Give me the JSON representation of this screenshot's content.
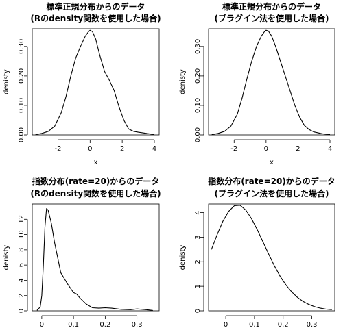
{
  "chart_data": [
    {
      "type": "line",
      "title": "標準正規分布からのデータ",
      "subtitle": "(Rのdensity関数を使用した場合)",
      "xlabel": "x",
      "ylabel": "denisty",
      "xlim": [
        -3.6,
        4.3
      ],
      "ylim": [
        0,
        0.36
      ],
      "xticks": [
        -2,
        0,
        2,
        4
      ],
      "yticks": [
        0.0,
        0.1,
        0.2,
        0.3
      ],
      "ytick_labels": [
        "0.00",
        "0.10",
        "0.20",
        "0.30"
      ],
      "grid": false,
      "x": [
        -3.4,
        -3.0,
        -2.6,
        -2.2,
        -1.8,
        -1.5,
        -1.2,
        -0.9,
        -0.6,
        -0.3,
        -0.1,
        0.0,
        0.15,
        0.35,
        0.6,
        0.9,
        1.2,
        1.5,
        1.8,
        2.1,
        2.4,
        2.7,
        3.0,
        3.5,
        4.0
      ],
      "y": [
        0.001,
        0.005,
        0.012,
        0.03,
        0.075,
        0.13,
        0.2,
        0.26,
        0.3,
        0.335,
        0.35,
        0.355,
        0.35,
        0.325,
        0.27,
        0.215,
        0.185,
        0.15,
        0.095,
        0.05,
        0.02,
        0.012,
        0.009,
        0.005,
        0.001
      ]
    },
    {
      "type": "line",
      "title": "標準正規分布からのデータ",
      "subtitle": "(プラグイン法を使用した場合)",
      "xlabel": "x",
      "ylabel": "denisty",
      "xlim": [
        -3.6,
        4.3
      ],
      "ylim": [
        0,
        0.36
      ],
      "xticks": [
        -2,
        0,
        2,
        4
      ],
      "yticks": [
        0.0,
        0.1,
        0.2,
        0.3
      ],
      "ytick_labels": [
        "0.00",
        "0.10",
        "0.20",
        "0.30"
      ],
      "grid": false,
      "x": [
        -3.4,
        -3.0,
        -2.6,
        -2.2,
        -1.8,
        -1.5,
        -1.2,
        -0.9,
        -0.6,
        -0.3,
        -0.1,
        0.0,
        0.15,
        0.35,
        0.6,
        0.9,
        1.2,
        1.5,
        1.8,
        2.1,
        2.4,
        2.7,
        3.0,
        3.5,
        4.0
      ],
      "y": [
        0.001,
        0.005,
        0.012,
        0.03,
        0.07,
        0.125,
        0.19,
        0.25,
        0.3,
        0.335,
        0.35,
        0.355,
        0.352,
        0.335,
        0.3,
        0.25,
        0.2,
        0.15,
        0.1,
        0.06,
        0.032,
        0.018,
        0.01,
        0.004,
        0.001
      ]
    },
    {
      "type": "line",
      "title": "指数分布(rate=20)からのデータ",
      "subtitle": "(Rのdensity関数を使用した場合)",
      "xlabel": "",
      "ylabel": "denisty",
      "xlim": [
        -0.03,
        0.37
      ],
      "ylim": [
        0,
        14
      ],
      "xticks": [
        0.0,
        0.1,
        0.2,
        0.3
      ],
      "yticks": [
        0,
        2,
        4,
        6,
        8,
        10,
        12
      ],
      "ytick_labels": [
        "0",
        "2",
        "4",
        "6",
        "8",
        "10",
        "12"
      ],
      "grid": false,
      "x": [
        -0.015,
        -0.005,
        0.0,
        0.005,
        0.01,
        0.015,
        0.02,
        0.03,
        0.04,
        0.05,
        0.06,
        0.07,
        0.08,
        0.09,
        0.1,
        0.11,
        0.12,
        0.14,
        0.16,
        0.18,
        0.2,
        0.22,
        0.25,
        0.28,
        0.3,
        0.33,
        0.35
      ],
      "y": [
        0.05,
        0.5,
        2.0,
        6.0,
        11.0,
        13.4,
        13.2,
        11.5,
        9.0,
        7.0,
        5.0,
        4.3,
        3.6,
        3.0,
        2.4,
        2.2,
        1.7,
        0.9,
        0.4,
        0.35,
        0.4,
        0.35,
        0.2,
        0.15,
        0.25,
        0.15,
        0.05
      ]
    },
    {
      "type": "line",
      "title": "指数分布(rate=20)からのデータ",
      "subtitle": "(プラグイン法を使用した場合)",
      "xlabel": "",
      "ylabel": "denisty",
      "xlim": [
        -0.06,
        0.38
      ],
      "ylim": [
        0,
        4.35
      ],
      "xticks": [
        0.0,
        0.1,
        0.2,
        0.3
      ],
      "yticks": [
        0,
        1,
        2,
        3,
        4
      ],
      "ytick_labels": [
        "0",
        "1",
        "2",
        "3",
        "4"
      ],
      "grid": false,
      "x": [
        -0.05,
        -0.03,
        -0.01,
        0.01,
        0.03,
        0.05,
        0.07,
        0.09,
        0.11,
        0.13,
        0.15,
        0.17,
        0.19,
        0.21,
        0.23,
        0.25,
        0.27,
        0.29,
        0.31,
        0.33,
        0.35,
        0.37
      ],
      "y": [
        2.5,
        3.1,
        3.65,
        4.05,
        4.28,
        4.3,
        4.1,
        3.75,
        3.3,
        2.8,
        2.3,
        1.82,
        1.4,
        1.05,
        0.77,
        0.55,
        0.38,
        0.26,
        0.17,
        0.11,
        0.07,
        0.05
      ]
    }
  ]
}
